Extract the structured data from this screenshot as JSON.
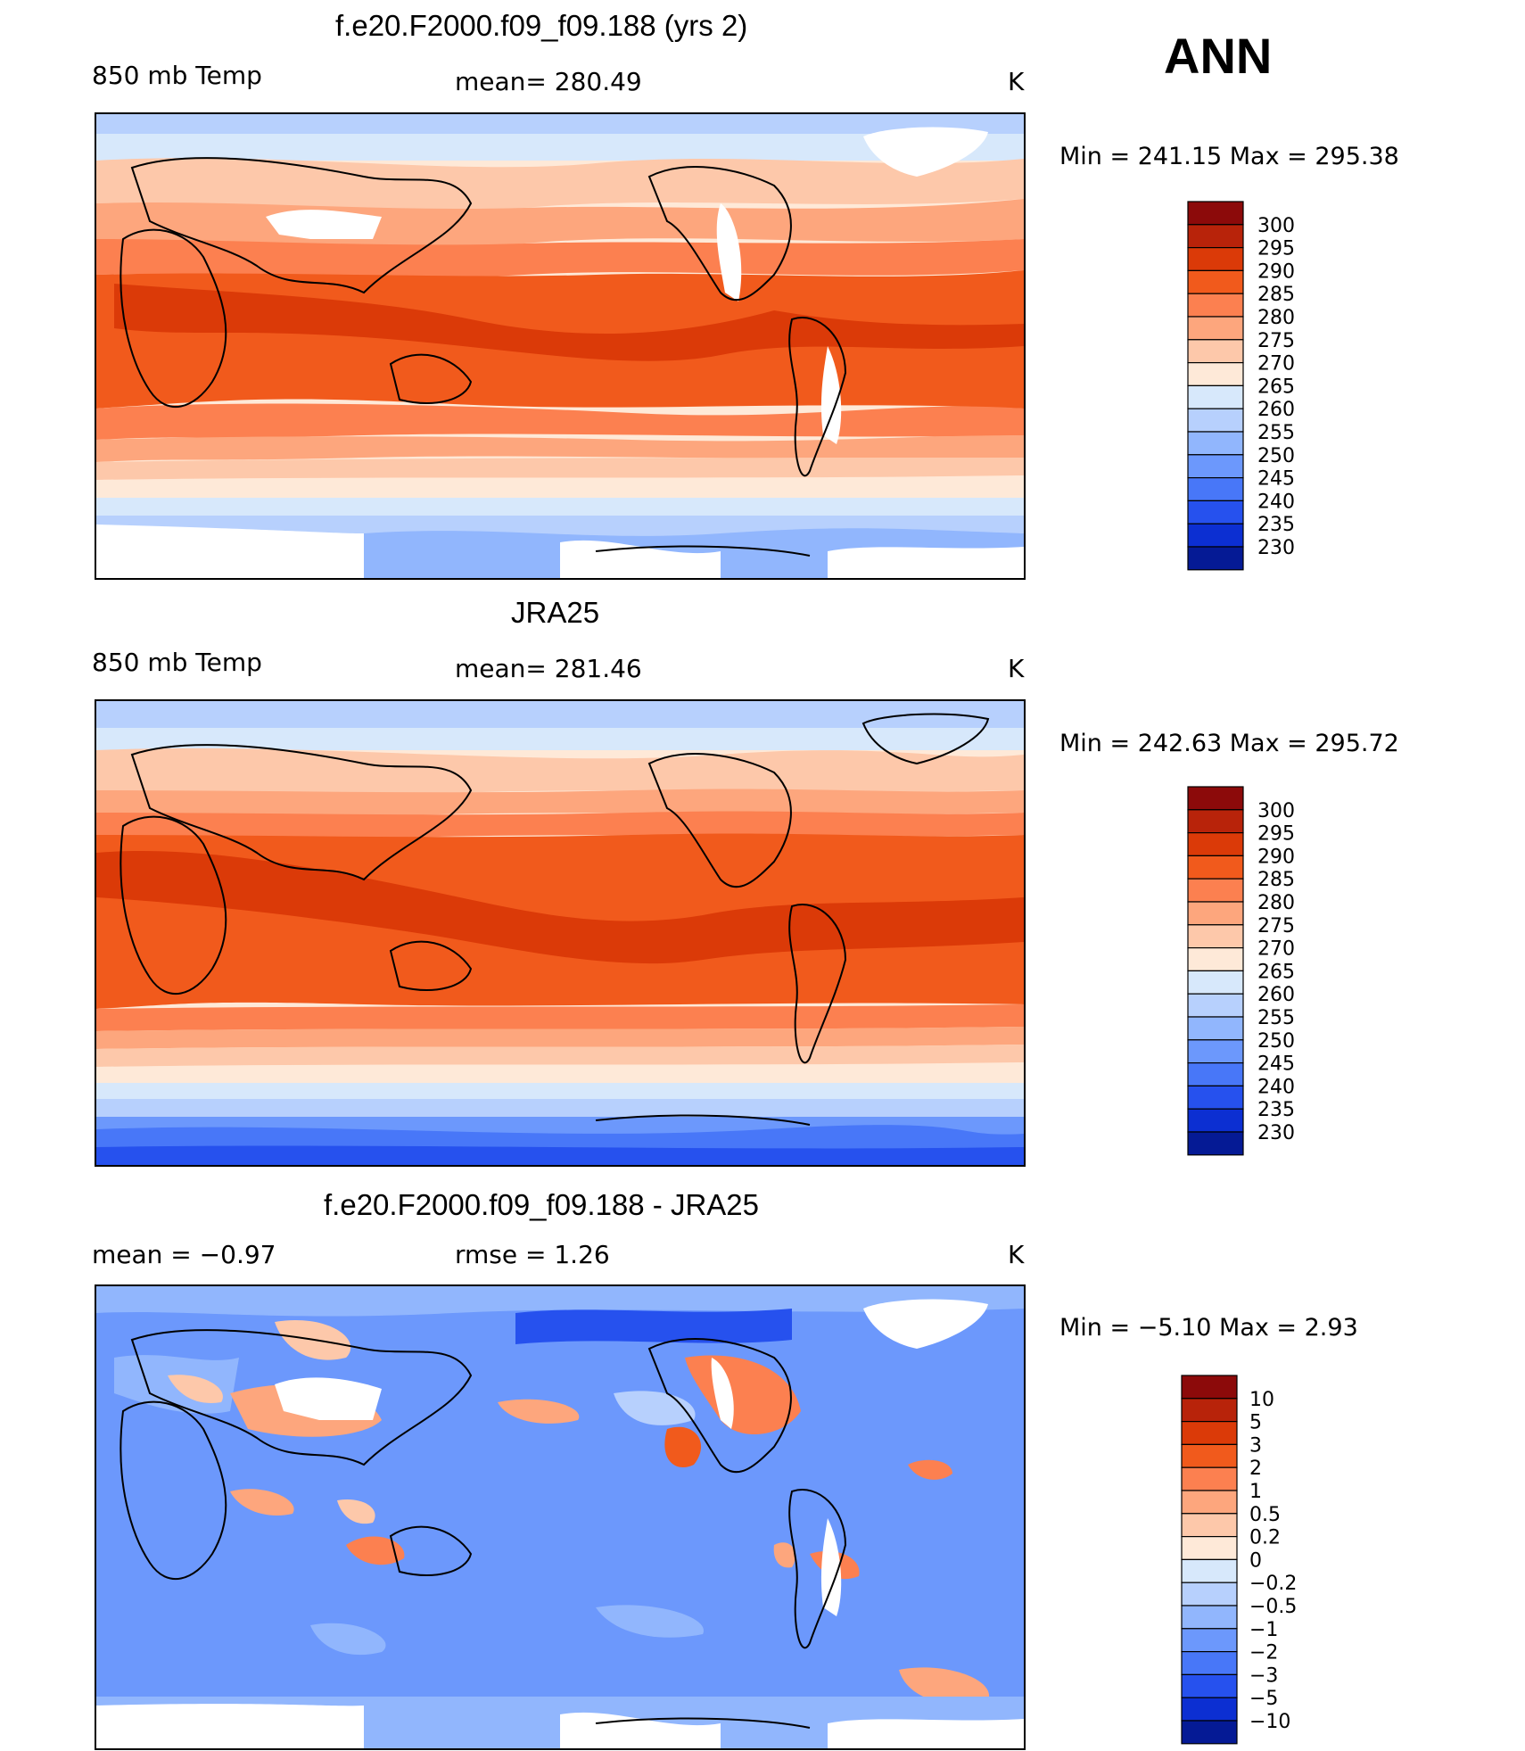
{
  "season": "ANN",
  "panels": [
    {
      "title": "f.e20.F2000.f09_f09.188 (yrs 2)",
      "left": "850 mb Temp",
      "mid": "mean=  280.49",
      "unit": "K",
      "minmax": "Min  =  241.15  Max  =  295.38",
      "kind": "abs"
    },
    {
      "title": "JRA25",
      "left": "850 mb Temp",
      "mid": "mean=  281.46",
      "unit": "K",
      "minmax": "Min  =  242.63  Max  =  295.72",
      "kind": "abs"
    },
    {
      "title": "f.e20.F2000.f09_f09.188 - JRA25",
      "left": "mean  =    −0.97",
      "mid": "rmse  =     1.26",
      "unit": "K",
      "minmax": "Min  =   −5.10  Max  =     2.93",
      "kind": "diff"
    }
  ],
  "colorbars": {
    "abs": {
      "labels": [
        "300",
        "295",
        "290",
        "285",
        "280",
        "275",
        "270",
        "265",
        "260",
        "255",
        "250",
        "245",
        "240",
        "235",
        "230"
      ],
      "colors": [
        "#8c0a0a",
        "#b8230a",
        "#db3a08",
        "#f15a1c",
        "#fc8050",
        "#fda67d",
        "#fdc8aa",
        "#fee9d8",
        "#d7e8fb",
        "#b7d0fd",
        "#91b6fd",
        "#6c98fc",
        "#4877f8",
        "#2651ee",
        "#0c2fd2",
        "#051a95"
      ]
    },
    "diff": {
      "labels": [
        "10",
        "5",
        "3",
        "2",
        "1",
        "0.5",
        "0.2",
        "0",
        "−0.2",
        "−0.5",
        "−1",
        "−2",
        "−3",
        "−5",
        "−10"
      ],
      "colors": [
        "#8c0a0a",
        "#b8230a",
        "#db3a08",
        "#f15a1c",
        "#fc8050",
        "#fda67d",
        "#fdc8aa",
        "#fee9d8",
        "#d7e8fb",
        "#b7d0fd",
        "#91b6fd",
        "#6c98fc",
        "#4877f8",
        "#2651ee",
        "#0c2fd2",
        "#051a95"
      ]
    }
  }
}
